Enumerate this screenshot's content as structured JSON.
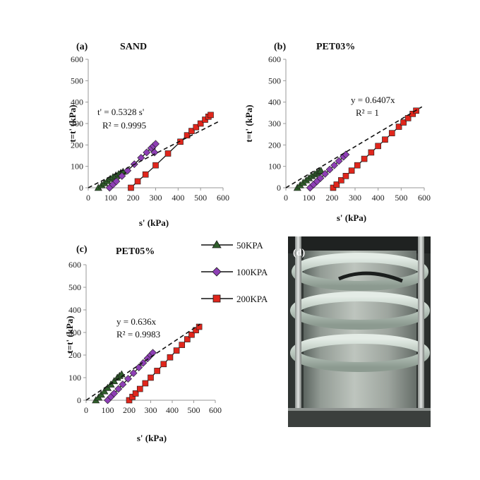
{
  "legend": {
    "entries": [
      {
        "label": "50KPA",
        "color": "#2f5e2b",
        "marker": "triangle"
      },
      {
        "label": "100KPA",
        "color": "#8e3fb5",
        "marker": "diamond"
      },
      {
        "label": "200KPA",
        "color": "#e0261c",
        "marker": "square"
      }
    ]
  },
  "photo": {
    "letter": "(d)"
  },
  "chart_data": [
    {
      "type": "scatter",
      "letter": "(a)",
      "title": "SAND",
      "xlabel": "s' (kPa)",
      "ylabel": "t=t' (kPa)",
      "xlim": [
        0,
        600
      ],
      "ylim": [
        0,
        600
      ],
      "xticks": [
        "0",
        "100",
        "200",
        "300",
        "400",
        "500",
        "600"
      ],
      "yticks": [
        "0",
        "100",
        "200",
        "300",
        "400",
        "500",
        "600"
      ],
      "grid": false,
      "fit": {
        "slope": 0.5328,
        "x_end": 580,
        "lines": [
          "t' = 0.5328 s'",
          "R² = 0.9995"
        ]
      },
      "series": [
        {
          "name": "50KPA",
          "x": [
            45,
            60,
            72,
            85,
            98,
            110,
            123,
            135,
            145,
            155
          ],
          "y": [
            0,
            12,
            22,
            32,
            42,
            50,
            58,
            64,
            70,
            75
          ]
        },
        {
          "name": "100KPA",
          "x": [
            95,
            110,
            125,
            150,
            175,
            205,
            235,
            260,
            280,
            290,
            300,
            295
          ],
          "y": [
            0,
            15,
            30,
            55,
            80,
            110,
            140,
            165,
            185,
            195,
            205,
            165
          ]
        },
        {
          "name": "200KPA",
          "x": [
            190,
            220,
            255,
            300,
            355,
            410,
            440,
            460,
            480,
            500,
            520,
            535,
            545
          ],
          "y": [
            0,
            30,
            62,
            105,
            160,
            215,
            245,
            265,
            283,
            300,
            318,
            332,
            340
          ]
        }
      ]
    },
    {
      "type": "scatter",
      "letter": "(b)",
      "title": "PET03%",
      "xlabel": "s' (kPa)",
      "ylabel": "t=t' (kPa)",
      "xlim": [
        0,
        600
      ],
      "ylim": [
        0,
        600
      ],
      "xticks": [
        "0",
        "100",
        "200",
        "300",
        "400",
        "500",
        "600"
      ],
      "yticks": [
        "0",
        "100",
        "200",
        "300",
        "400",
        "500",
        "600"
      ],
      "grid": false,
      "fit": {
        "slope": 0.6407,
        "x_end": 590,
        "lines": [
          "y = 0.6407x",
          "R² = 1"
        ]
      },
      "series": [
        {
          "name": "50KPA",
          "x": [
            50,
            62,
            75,
            88,
            100,
            112,
            125,
            135,
            145,
            152
          ],
          "y": [
            0,
            12,
            24,
            35,
            45,
            55,
            63,
            70,
            76,
            80
          ]
        },
        {
          "name": "100KPA",
          "x": [
            105,
            120,
            135,
            150,
            170,
            190,
            210,
            230,
            250,
            260
          ],
          "y": [
            0,
            15,
            30,
            45,
            65,
            85,
            105,
            125,
            145,
            155
          ]
        },
        {
          "name": "200KPA",
          "x": [
            205,
            220,
            240,
            260,
            285,
            310,
            340,
            370,
            400,
            430,
            460,
            490,
            510,
            530,
            550,
            565
          ],
          "y": [
            0,
            15,
            35,
            55,
            80,
            105,
            135,
            165,
            195,
            225,
            255,
            285,
            305,
            325,
            345,
            360
          ]
        }
      ]
    },
    {
      "type": "scatter",
      "letter": "(c)",
      "title": "PET05%",
      "xlabel": "s' (kPa)",
      "ylabel": "t=t' (kPa)",
      "xlim": [
        0,
        600
      ],
      "ylim": [
        0,
        600
      ],
      "xticks": [
        "0",
        "100",
        "200",
        "300",
        "400",
        "500",
        "600"
      ],
      "yticks": [
        "0",
        "100",
        "200",
        "300",
        "400",
        "500",
        "600"
      ],
      "grid": false,
      "fit": {
        "slope": 0.636,
        "x_end": 530,
        "lines": [
          "y = 0.636x",
          "R² = 0.9983"
        ]
      },
      "series": [
        {
          "name": "50KPA",
          "x": [
            45,
            58,
            70,
            85,
            100,
            115,
            130,
            145,
            155,
            165
          ],
          "y": [
            0,
            12,
            25,
            40,
            55,
            70,
            85,
            100,
            108,
            115
          ]
        },
        {
          "name": "100KPA",
          "x": [
            100,
            115,
            130,
            150,
            170,
            195,
            220,
            245,
            265,
            285,
            300,
            310
          ],
          "y": [
            0,
            15,
            30,
            50,
            70,
            95,
            120,
            145,
            165,
            185,
            200,
            210
          ]
        },
        {
          "name": "200KPA",
          "x": [
            200,
            215,
            230,
            250,
            275,
            300,
            330,
            360,
            390,
            420,
            445,
            470,
            490,
            510,
            525
          ],
          "y": [
            0,
            15,
            30,
            50,
            75,
            100,
            130,
            160,
            190,
            220,
            245,
            270,
            290,
            310,
            325
          ]
        }
      ]
    }
  ]
}
